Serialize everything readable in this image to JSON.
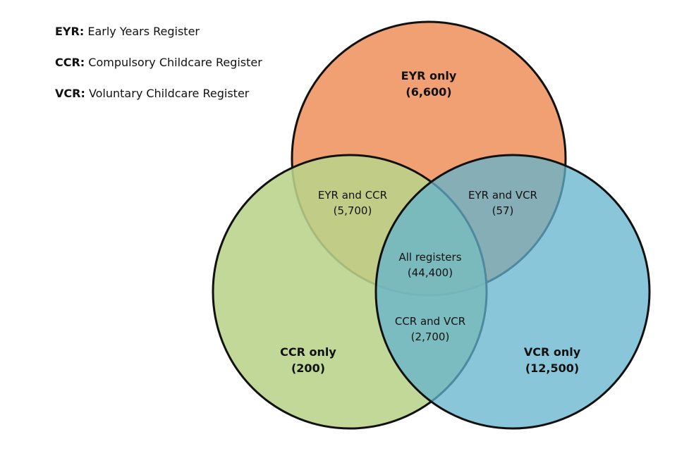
{
  "legend": [
    {
      "abbr": "EYR:",
      "text": "Early Years Register"
    },
    {
      "abbr": "CCR:",
      "text": "Compulsory Childcare Register"
    },
    {
      "abbr": "VCR:",
      "text": "Voluntary Childcare Register"
    }
  ],
  "colors": {
    "eyr": "#f0a072",
    "ccr": "#b9d38a",
    "vcr": "#63b3cd",
    "outline": "#111111"
  },
  "regions": {
    "eyr_only": {
      "label": "EYR only",
      "count": "(6,600)"
    },
    "ccr_only": {
      "label": "CCR only",
      "count": "(200)"
    },
    "vcr_only": {
      "label": "VCR only",
      "count": "(12,500)"
    },
    "eyr_ccr": {
      "label": "EYR and CCR",
      "count": "(5,700)"
    },
    "eyr_vcr": {
      "label": "EYR and VCR",
      "count": "(57)"
    },
    "ccr_vcr": {
      "label": "CCR and VCR",
      "count": "(2,700)"
    },
    "all": {
      "label": "All registers",
      "count": "(44,400)"
    }
  }
}
